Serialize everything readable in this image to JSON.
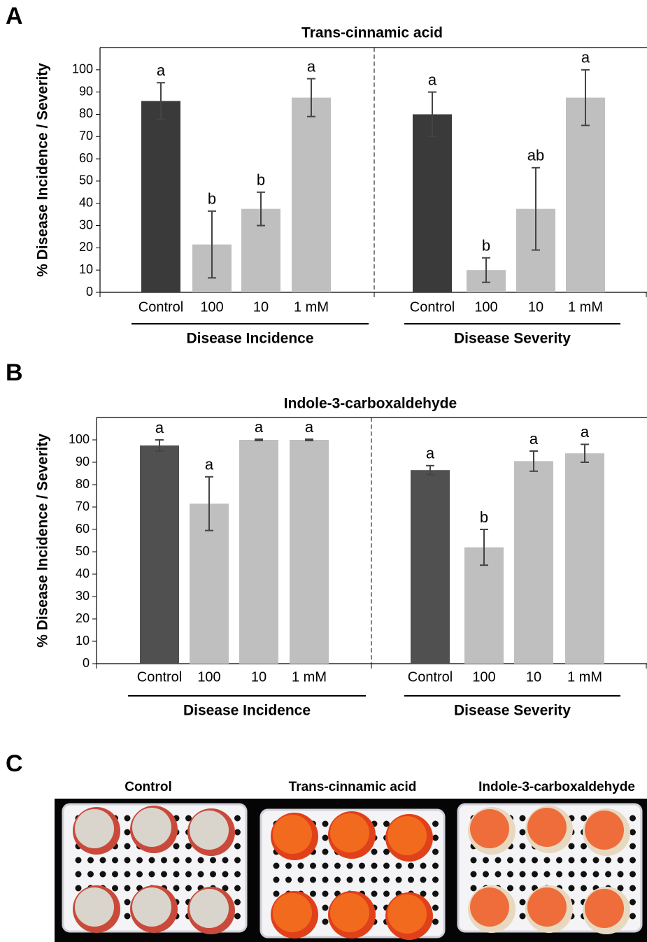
{
  "chart_data": [
    {
      "type": "bar",
      "panel": "A",
      "title": "Trans-cinnamic acid",
      "ylabel": "% Disease Incidence / Severity",
      "categories": [
        "Control",
        "100",
        "10",
        "1 mM",
        "Control",
        "100",
        "10",
        "1 mM"
      ],
      "groups": [
        "Disease Incidence",
        "Disease Severity"
      ],
      "values": [
        86,
        21.5,
        37.5,
        87.5,
        80,
        10,
        37.5,
        87.5
      ],
      "errors": [
        8.2,
        15,
        7.5,
        8.5,
        10,
        5.5,
        18.5,
        12.5
      ],
      "annotations": [
        "a",
        "b",
        "b",
        "a",
        "a",
        "b",
        "ab",
        "a"
      ],
      "colors": [
        "#3a3a3a",
        "#bfbfbf",
        "#bfbfbf",
        "#bfbfbf",
        "#3a3a3a",
        "#bfbfbf",
        "#bfbfbf",
        "#bfbfbf"
      ],
      "ylim": [
        0,
        110
      ],
      "yticks": [
        0,
        10,
        20,
        30,
        40,
        50,
        60,
        70,
        80,
        90,
        100
      ]
    },
    {
      "type": "bar",
      "panel": "B",
      "title": "Indole-3-carboxaldehyde",
      "ylabel": "% Disease Incidence / Severity",
      "categories": [
        "Control",
        "100",
        "10",
        "1 mM",
        "Control",
        "100",
        "10",
        "1 mM"
      ],
      "groups": [
        "Disease Incidence",
        "Disease Severity"
      ],
      "values": [
        97.5,
        71.5,
        100,
        100,
        86.5,
        52,
        90.5,
        94
      ],
      "errors": [
        2.5,
        12,
        0.3,
        0.3,
        2,
        8,
        4.5,
        4
      ],
      "annotations": [
        "a",
        "a",
        "a",
        "a",
        "a",
        "b",
        "a",
        "a"
      ],
      "colors": [
        "#505050",
        "#bfbfbf",
        "#bfbfbf",
        "#bfbfbf",
        "#505050",
        "#bfbfbf",
        "#bfbfbf",
        "#bfbfbf"
      ],
      "ylim": [
        0,
        110
      ],
      "yticks": [
        0,
        10,
        20,
        30,
        40,
        50,
        60,
        70,
        80,
        90,
        100
      ]
    }
  ],
  "photo": {
    "panel": "C",
    "labels": [
      "Control",
      "Trans-cinnamic acid",
      "Indole-3-carboxaldehyde"
    ]
  }
}
